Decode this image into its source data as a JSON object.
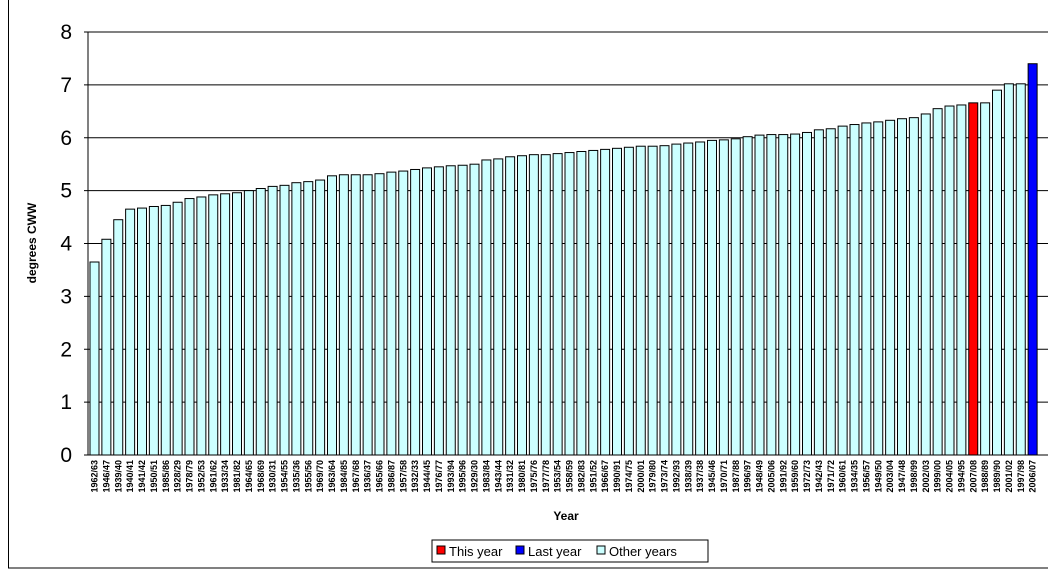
{
  "chart_data": {
    "type": "bar",
    "title": "",
    "xlabel": "Year",
    "ylabel": "degrees CWW",
    "ylim": [
      0,
      8
    ],
    "yticks": [
      0,
      1,
      2,
      3,
      4,
      5,
      6,
      7,
      8
    ],
    "grid": true,
    "legend_position": "bottom",
    "legend": [
      {
        "label": "This year",
        "color": "#ff0000"
      },
      {
        "label": "Last year",
        "color": "#0000ff"
      },
      {
        "label": "Other years",
        "color": "#ccffff"
      }
    ],
    "highlight": {
      "this_year": "2007/08",
      "last_year": "2006/07"
    },
    "categories": [
      "1962/63",
      "1946/47",
      "1939/40",
      "1940/41",
      "1941/42",
      "1950/51",
      "1985/86",
      "1928/29",
      "1978/79",
      "1952/53",
      "1961/62",
      "1933/34",
      "1981/82",
      "1964/65",
      "1968/69",
      "1930/31",
      "1954/55",
      "1935/36",
      "1955/56",
      "1969/70",
      "1963/64",
      "1984/85",
      "1967/68",
      "1936/37",
      "1965/66",
      "1986/87",
      "1957/58",
      "1932/33",
      "1944/45",
      "1976/77",
      "1993/94",
      "1995/96",
      "1929/30",
      "1983/84",
      "1943/44",
      "1931/32",
      "1980/81",
      "1975/76",
      "1977/78",
      "1953/54",
      "1958/59",
      "1982/83",
      "1951/52",
      "1966/67",
      "1990/91",
      "1974/75",
      "2000/01",
      "1979/80",
      "1973/74",
      "1992/93",
      "1938/39",
      "1937/38",
      "1945/46",
      "1970/71",
      "1987/88",
      "1996/97",
      "1948/49",
      "2005/06",
      "1991/92",
      "1959/60",
      "1972/73",
      "1942/43",
      "1971/72",
      "1960/61",
      "1934/35",
      "1956/57",
      "1949/50",
      "2003/04",
      "1947/48",
      "1998/99",
      "2002/03",
      "1999/00",
      "2004/05",
      "1994/95",
      "2007/08",
      "1988/89",
      "1989/90",
      "2001/02",
      "1997/98",
      "2006/07"
    ],
    "values": [
      3.65,
      4.08,
      4.45,
      4.65,
      4.67,
      4.7,
      4.72,
      4.78,
      4.85,
      4.88,
      4.92,
      4.94,
      4.96,
      5.0,
      5.04,
      5.08,
      5.1,
      5.15,
      5.17,
      5.2,
      5.28,
      5.3,
      5.3,
      5.3,
      5.32,
      5.35,
      5.37,
      5.4,
      5.43,
      5.45,
      5.47,
      5.48,
      5.5,
      5.58,
      5.6,
      5.64,
      5.66,
      5.68,
      5.68,
      5.7,
      5.72,
      5.74,
      5.76,
      5.78,
      5.8,
      5.82,
      5.84,
      5.84,
      5.85,
      5.88,
      5.9,
      5.92,
      5.95,
      5.96,
      5.98,
      6.02,
      6.05,
      6.06,
      6.06,
      6.07,
      6.1,
      6.15,
      6.17,
      6.22,
      6.25,
      6.28,
      6.3,
      6.33,
      6.36,
      6.38,
      6.45,
      6.55,
      6.6,
      6.62,
      6.66,
      6.66,
      6.9,
      7.02,
      7.02,
      7.4
    ]
  }
}
